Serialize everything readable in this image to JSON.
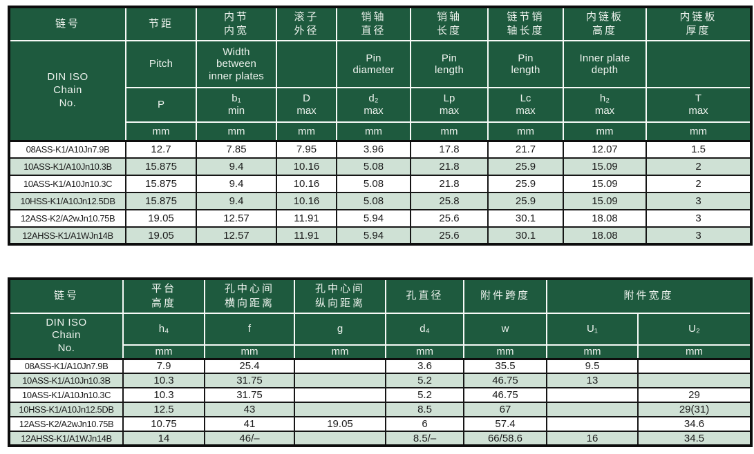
{
  "colors": {
    "header_green": "#1e5a3e",
    "stripe_green": "#cfe1d5",
    "row_white": "#ffffff",
    "header_text": "#eef3ee",
    "body_text": "#1a1a1a",
    "outer_border": "#0d0d0d",
    "inner_header_border": "#f7faf7"
  },
  "table1": {
    "unit": "mm",
    "rowhead": "DIN ISO\nChain\nNo.",
    "cn": [
      "链号",
      "节距",
      "内节\n内宽",
      "滚子\n外径",
      "销轴\n直径",
      "销轴\n长度",
      "链节销\n轴长度",
      "内链板\n高度",
      "内链板\n厚度"
    ],
    "en": [
      "Pitch",
      "Width\nbetween\ninner plates",
      "",
      "Pin\ndiameter",
      "Pin\nlength",
      "Pin\nlength",
      "Inner plate\ndepth",
      ""
    ],
    "sym": [
      "P",
      "b₁\nmin",
      "D\nmax",
      "d₂\nmax",
      "Lp\nmax",
      "Lc\nmax",
      "h₂\nmax",
      "T\nmax"
    ],
    "rows": [
      [
        "08ASS-K1/A10Jn7.9B",
        "12.7",
        "7.85",
        "7.95",
        "3.96",
        "17.8",
        "21.7",
        "12.07",
        "1.5"
      ],
      [
        "10ASS-K1/A10Jn10.3B",
        "15.875",
        "9.4",
        "10.16",
        "5.08",
        "21.8",
        "25.9",
        "15.09",
        "2"
      ],
      [
        "10ASS-K1/A10Jn10.3C",
        "15.875",
        "9.4",
        "10.16",
        "5.08",
        "21.8",
        "25.9",
        "15.09",
        "2"
      ],
      [
        "10HSS-K1/A10Jn12.5DB",
        "15.875",
        "9.4",
        "10.16",
        "5.08",
        "25.8",
        "25.9",
        "15.09",
        "3"
      ],
      [
        "12ASS-K2/A2wJn10.75B",
        "19.05",
        "12.57",
        "11.91",
        "5.94",
        "25.6",
        "30.1",
        "18.08",
        "3"
      ],
      [
        "12AHSS-K1/A1WJn14B",
        "19.05",
        "12.57",
        "11.91",
        "5.94",
        "25.6",
        "30.1",
        "18.08",
        "3"
      ]
    ]
  },
  "table2": {
    "unit": "mm",
    "rowhead": "DIN ISO\nChain\nNo.",
    "cn": [
      "链号",
      "平台\n高度",
      "孔中心间\n横向距离",
      "孔中心间\n纵向距离",
      "孔直径",
      "附件跨度",
      "附件宽度"
    ],
    "sym": [
      "h₄",
      "f",
      "g",
      "d₄",
      "w",
      "U₁",
      "U₂"
    ],
    "rows": [
      [
        "08ASS-K1/A10Jn7.9B",
        "7.9",
        "25.4",
        "",
        "3.6",
        "35.5",
        "9.5",
        ""
      ],
      [
        "10ASS-K1/A10Jn10.3B",
        "10.3",
        "31.75",
        "",
        "5.2",
        "46.75",
        "13",
        ""
      ],
      [
        "10ASS-K1/A10Jn10.3C",
        "10.3",
        "31.75",
        "",
        "5.2",
        "46.75",
        "",
        "29"
      ],
      [
        "10HSS-K1/A10Jn12.5DB",
        "12.5",
        "43",
        "",
        "8.5",
        "67",
        "",
        "29(31)"
      ],
      [
        "12ASS-K2/A2wJn10.75B",
        "10.75",
        "41",
        "19.05",
        "6",
        "57.4",
        "",
        "34.6"
      ],
      [
        "12AHSS-K1/A1WJn14B",
        "14",
        "46/–",
        "",
        "8.5/–",
        "66/58.6",
        "16",
        "34.5"
      ]
    ]
  }
}
